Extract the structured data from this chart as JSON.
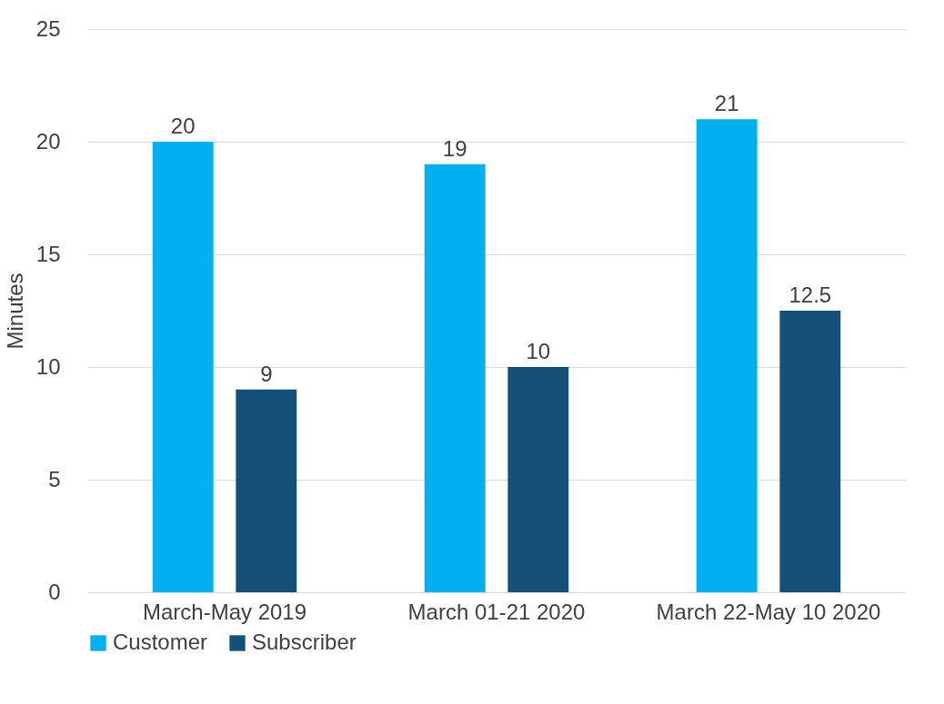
{
  "chart_data": {
    "type": "bar",
    "categories": [
      "March-May 2019",
      "March 01-21 2020",
      "March 22-May 10 2020"
    ],
    "ylabel": "Minutes",
    "ylim": [
      0,
      25
    ],
    "yticks": [
      0,
      5,
      10,
      15,
      20,
      25
    ],
    "grid": "y",
    "legend": "bottom",
    "data_labels": true,
    "series": [
      {
        "name": "Customer",
        "color": "#00b0f0",
        "values": [
          20,
          19,
          21
        ]
      },
      {
        "name": "Subscriber",
        "color": "#145078",
        "values": [
          9,
          10,
          12.5
        ]
      }
    ]
  }
}
